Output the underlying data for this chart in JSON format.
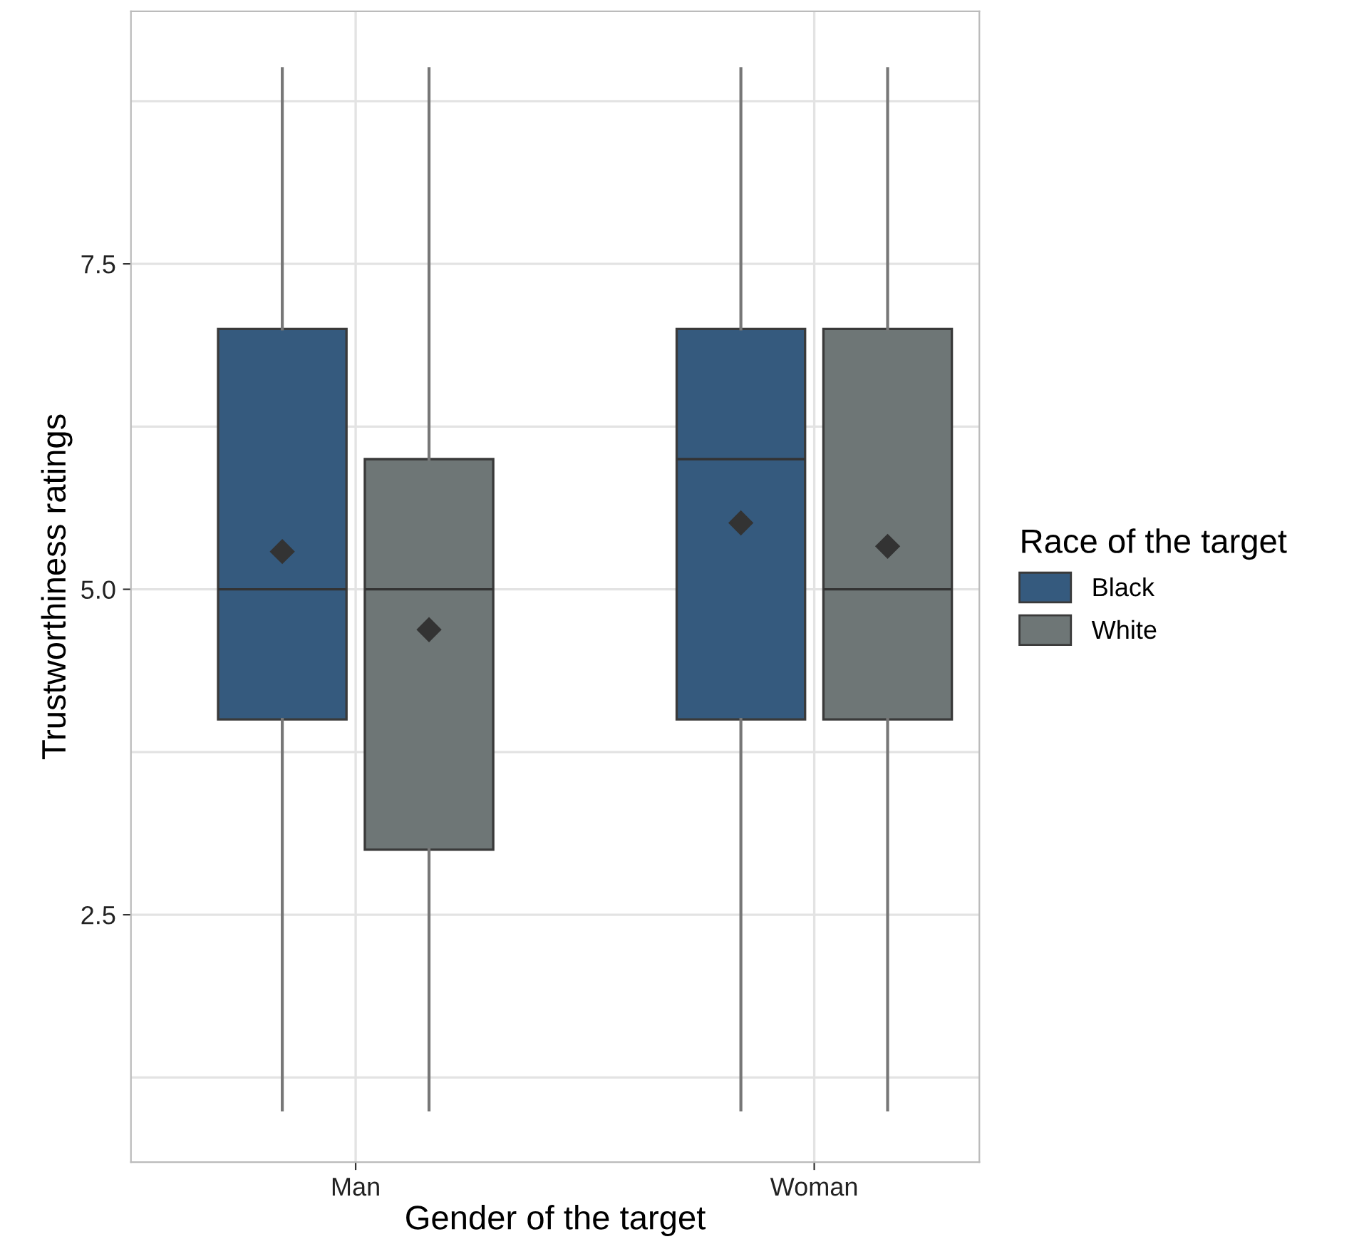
{
  "chart_data": {
    "type": "box",
    "xlabel": "Gender of the target",
    "ylabel": "Trustworthiness ratings",
    "legend_title": "Race of the target",
    "categories": [
      "Man",
      "Woman"
    ],
    "series": [
      {
        "name": "Black",
        "color": "#355a7e",
        "boxes": [
          {
            "low": 1,
            "q1": 4,
            "median": 5,
            "q3": 7,
            "high": 9,
            "mean": 5.29
          },
          {
            "low": 1,
            "q1": 4,
            "median": 6,
            "q3": 7,
            "high": 9,
            "mean": 5.51
          }
        ]
      },
      {
        "name": "White",
        "color": "#6e7676",
        "boxes": [
          {
            "low": 1,
            "q1": 3,
            "median": 5,
            "q3": 6,
            "high": 9,
            "mean": 4.69
          },
          {
            "low": 1,
            "q1": 4,
            "median": 5,
            "q3": 7,
            "high": 9,
            "mean": 5.33
          }
        ]
      }
    ],
    "ylim": [
      0.6,
      9.44
    ],
    "yticks": [
      {
        "value": 1.25,
        "label": null
      },
      2.5,
      {
        "value": 3.75,
        "label": null
      },
      {
        "value": 5,
        "label": "5.0"
      },
      {
        "value": 6.25,
        "label": null
      },
      7.5,
      {
        "value": 8.75,
        "label": null
      }
    ],
    "grid": true,
    "legend": "right",
    "marker": "diamond"
  }
}
